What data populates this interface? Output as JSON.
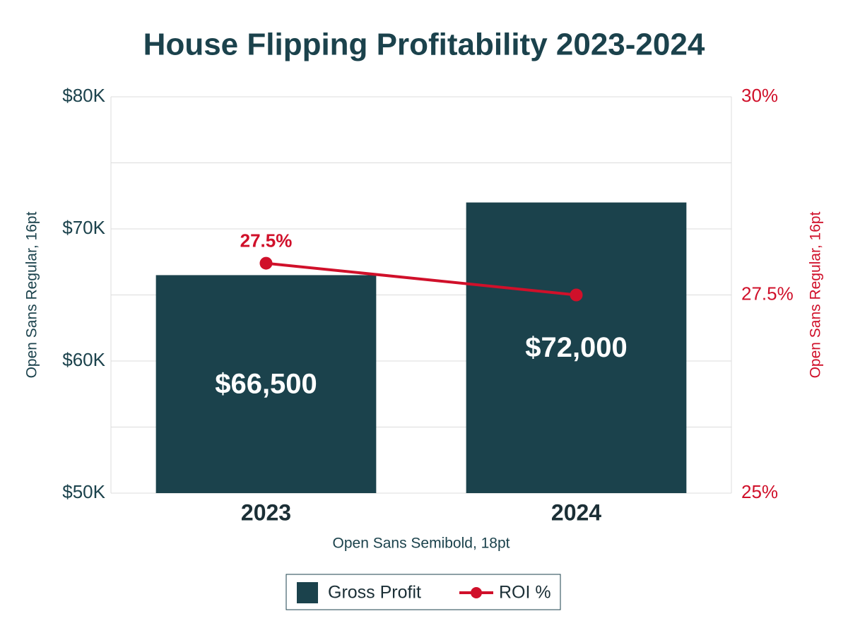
{
  "chart_data": {
    "type": "bar",
    "title": "House Flipping Profitability 2023-2024",
    "categories": [
      "2023",
      "2024"
    ],
    "x_label": "Open Sans Semibold, 18pt",
    "y_label": "Open Sans Regular, 16pt",
    "y2_label": "Open Sans Regular, 16pt",
    "series": [
      {
        "name": "Gross Profit",
        "type": "bar",
        "color": "#1b424c",
        "values": [
          66500,
          72000
        ],
        "value_labels": [
          "$66,500",
          "$72,000"
        ]
      },
      {
        "name": "ROI %",
        "type": "line",
        "axis": "y2",
        "color": "#d0102a",
        "values": [
          27.9,
          27.5
        ]
      }
    ],
    "annotation": "27.5%",
    "ylim": [
      50000,
      80000
    ],
    "yticks": [
      {
        "value": 50000,
        "label": "$50K"
      },
      {
        "value": 60000,
        "label": "$60K"
      },
      {
        "value": 70000,
        "label": "$70K"
      },
      {
        "value": 80000,
        "label": "$80K"
      }
    ],
    "minor_yticks": [
      55000,
      65000,
      75000
    ],
    "y2lim": [
      25,
      30
    ],
    "y2ticks": [
      {
        "value": 25,
        "label": "25%"
      },
      {
        "value": 27.5,
        "label": "27.5%"
      },
      {
        "value": 30,
        "label": "30%"
      }
    ],
    "grid": true,
    "legend": "bottom"
  }
}
